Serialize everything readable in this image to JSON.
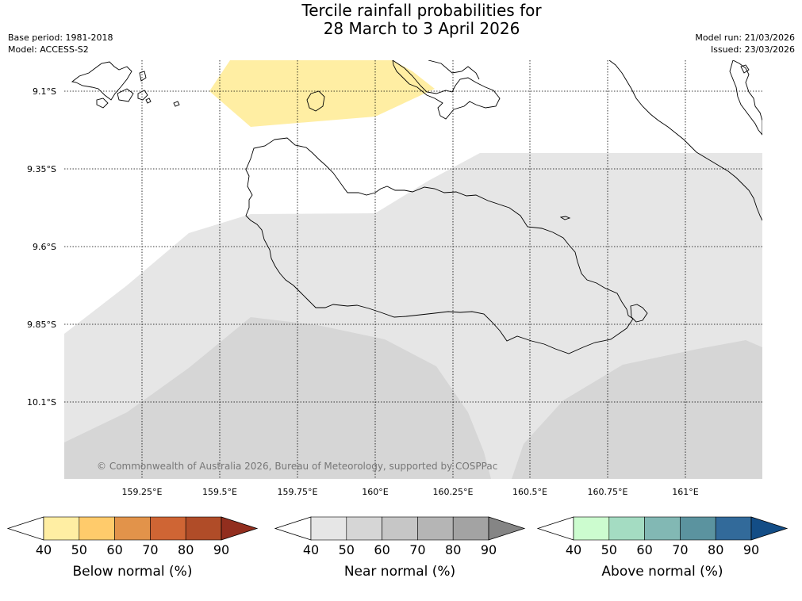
{
  "header": {
    "title_line1": "Tercile rainfall probabilities for",
    "title_line2": "28 March to 3 April 2026",
    "base_period": "Base period: 1981-2018",
    "model": "Model: ACCESS-S2",
    "model_run": "Model run: 21/03/2026",
    "issued": "Issued: 23/03/2026"
  },
  "map": {
    "lat_labels": [
      "9.1°S",
      "9.35°S",
      "9.6°S",
      "9.85°S",
      "10.1°S"
    ],
    "lon_labels": [
      "159.25°E",
      "159.5°E",
      "159.75°E",
      "160°E",
      "160.25°E",
      "160.5°E",
      "160.75°E",
      "161°E"
    ],
    "credit": "© Commonwealth of Australia 2026, Bureau of Meteorology, supported by COSPPac"
  },
  "colorbars": [
    {
      "name": "below-normal",
      "title": "Below normal (%)",
      "ticks": [
        "40",
        "50",
        "60",
        "70",
        "80",
        "90"
      ],
      "colors": [
        "#ffeea3",
        "#ffcb6b",
        "#e2934a",
        "#cf6534",
        "#b04c28",
        "#922e1e"
      ]
    },
    {
      "name": "near-normal",
      "title": "Near normal (%)",
      "ticks": [
        "40",
        "50",
        "60",
        "70",
        "80",
        "90"
      ],
      "colors": [
        "#e6e6e6",
        "#d6d6d6",
        "#c6c6c6",
        "#b5b5b5",
        "#a3a3a3",
        "#858585"
      ]
    },
    {
      "name": "above-normal",
      "title": "Above normal (%)",
      "ticks": [
        "40",
        "50",
        "60",
        "70",
        "80",
        "90"
      ],
      "colors": [
        "#ccfccf",
        "#a4dcc2",
        "#82b8b4",
        "#5b939f",
        "#326a9a",
        "#134d86"
      ]
    }
  ]
}
